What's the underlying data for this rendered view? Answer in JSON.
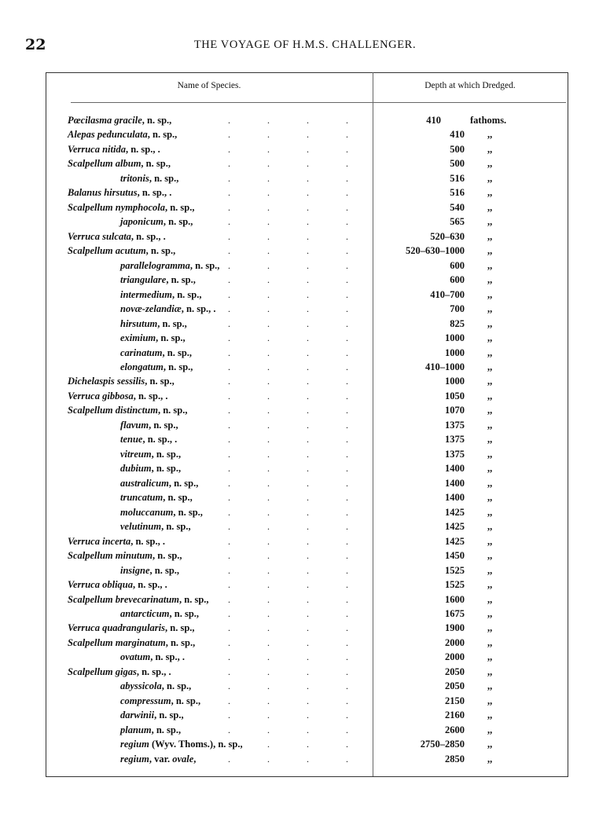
{
  "page_number": "22",
  "running_head": "THE VOYAGE OF H.M.S. CHALLENGER.",
  "table": {
    "headers": {
      "name": "Name of Species.",
      "depth": "Depth at which Dredged."
    },
    "rows": [
      {
        "name": "Pœcilasma gracile",
        "suffix": ", n. sp.,",
        "indent": false,
        "depth": "410",
        "unit": "fathoms."
      },
      {
        "name": "Alepas pedunculata",
        "suffix": ", n. sp.,",
        "indent": false,
        "depth": "410",
        "unit": ",,"
      },
      {
        "name": "Verruca nitida",
        "suffix": ", n. sp., .",
        "indent": false,
        "depth": "500",
        "unit": ",,"
      },
      {
        "name": "Scalpellum album",
        "suffix": ", n. sp.,",
        "indent": false,
        "depth": "500",
        "unit": ",,"
      },
      {
        "name": "tritonis",
        "suffix": ", n. sp.,",
        "indent": true,
        "depth": "516",
        "unit": ",,"
      },
      {
        "name": "Balanus hirsutus",
        "suffix": ", n. sp., .",
        "indent": false,
        "depth": "516",
        "unit": ",,"
      },
      {
        "name": "Scalpellum nymphocola",
        "suffix": ", n. sp.,",
        "indent": false,
        "depth": "540",
        "unit": ",,"
      },
      {
        "name": "japonicum",
        "suffix": ", n. sp.,",
        "indent": true,
        "depth": "565",
        "unit": ",,"
      },
      {
        "name": "Verruca sulcata",
        "suffix": ", n. sp., .",
        "indent": false,
        "depth": "520–630",
        "unit": ",,"
      },
      {
        "name": "Scalpellum acutum",
        "suffix": ", n. sp.,",
        "indent": false,
        "depth": "520–630–1000",
        "unit": ",,"
      },
      {
        "name": "parallelogramma",
        "suffix": ", n. sp.,",
        "indent": true,
        "depth": "600",
        "unit": ",,"
      },
      {
        "name": "triangulare",
        "suffix": ", n. sp.,",
        "indent": true,
        "depth": "600",
        "unit": ",,"
      },
      {
        "name": "intermedium",
        "suffix": ", n. sp.,",
        "indent": true,
        "depth": "410–700",
        "unit": ",,"
      },
      {
        "name": "novæ-zelandiæ",
        "suffix": ", n. sp., .",
        "indent": true,
        "depth": "700",
        "unit": ",,"
      },
      {
        "name": "hirsutum",
        "suffix": ", n. sp.,",
        "indent": true,
        "depth": "825",
        "unit": ",,"
      },
      {
        "name": "eximium",
        "suffix": ", n. sp.,",
        "indent": true,
        "depth": "1000",
        "unit": ",,"
      },
      {
        "name": "carinatum",
        "suffix": ", n. sp.,",
        "indent": true,
        "depth": "1000",
        "unit": ",,"
      },
      {
        "name": "elongatum",
        "suffix": ", n. sp.,",
        "indent": true,
        "depth": "410–1000",
        "unit": ",,"
      },
      {
        "name": "Dichelaspis sessilis",
        "suffix": ", n. sp.,",
        "indent": false,
        "depth": "1000",
        "unit": ",,"
      },
      {
        "name": "Verruca gibbosa",
        "suffix": ", n. sp., .",
        "indent": false,
        "depth": "1050",
        "unit": ",,"
      },
      {
        "name": "Scalpellum distinctum",
        "suffix": ", n. sp.,",
        "indent": false,
        "depth": "1070",
        "unit": ",,"
      },
      {
        "name": "flavum",
        "suffix": ", n. sp.,",
        "indent": true,
        "depth": "1375",
        "unit": ",,"
      },
      {
        "name": "tenue",
        "suffix": ", n. sp., .",
        "indent": true,
        "depth": "1375",
        "unit": ",,"
      },
      {
        "name": "vitreum",
        "suffix": ", n. sp.,",
        "indent": true,
        "depth": "1375",
        "unit": ",,"
      },
      {
        "name": "dubium",
        "suffix": ", n. sp.,",
        "indent": true,
        "depth": "1400",
        "unit": ",,"
      },
      {
        "name": "australicum",
        "suffix": ", n. sp.,",
        "indent": true,
        "depth": "1400",
        "unit": ",,"
      },
      {
        "name": "truncatum",
        "suffix": ", n. sp.,",
        "indent": true,
        "depth": "1400",
        "unit": ",,"
      },
      {
        "name": "moluccanum",
        "suffix": ", n. sp.,",
        "indent": true,
        "depth": "1425",
        "unit": ",,"
      },
      {
        "name": "velutinum",
        "suffix": ", n. sp.,",
        "indent": true,
        "depth": "1425",
        "unit": ",,"
      },
      {
        "name": "Verruca incerta",
        "suffix": ", n. sp., .",
        "indent": false,
        "depth": "1425",
        "unit": ",,"
      },
      {
        "name": "Scalpellum minutum",
        "suffix": ", n. sp.,",
        "indent": false,
        "depth": "1450",
        "unit": ",,"
      },
      {
        "name": "insigne",
        "suffix": ", n. sp.,",
        "indent": true,
        "depth": "1525",
        "unit": ",,"
      },
      {
        "name": "Verruca obliqua",
        "suffix": ", n. sp., .",
        "indent": false,
        "depth": "1525",
        "unit": ",,"
      },
      {
        "name": "Scalpellum brevecarinatum",
        "suffix": ", n. sp.,",
        "indent": false,
        "depth": "1600",
        "unit": ",,"
      },
      {
        "name": "antarcticum",
        "suffix": ", n. sp.,",
        "indent": true,
        "depth": "1675",
        "unit": ",,"
      },
      {
        "name": "Verruca quadrangularis",
        "suffix": ", n. sp.,",
        "indent": false,
        "depth": "1900",
        "unit": ",,"
      },
      {
        "name": "Scalpellum marginatum",
        "suffix": ", n. sp.,",
        "indent": false,
        "depth": "2000",
        "unit": ",,"
      },
      {
        "name": "ovatum",
        "suffix": ", n. sp., .",
        "indent": true,
        "depth": "2000",
        "unit": ",,"
      },
      {
        "name": "Scalpellum gigas",
        "suffix": ", n. sp., .",
        "indent": false,
        "depth": "2050",
        "unit": ",,"
      },
      {
        "name": "abyssicola",
        "suffix": ", n. sp.,",
        "indent": true,
        "depth": "2050",
        "unit": ",,"
      },
      {
        "name": "compressum",
        "suffix": ", n. sp.,",
        "indent": true,
        "depth": "2150",
        "unit": ",,"
      },
      {
        "name": "darwinii",
        "suffix": ", n. sp.,",
        "indent": true,
        "depth": "2160",
        "unit": ",,"
      },
      {
        "name": "planum",
        "suffix": ", n. sp.,",
        "indent": true,
        "depth": "2600",
        "unit": ",,"
      },
      {
        "name": "regium",
        "suffix": " (Wyv. Thoms.), n. sp.,",
        "indent": true,
        "depth": "2750–2850",
        "unit": ",,"
      },
      {
        "name": "regium",
        "suffix": ", var. ",
        "name2": "ovale",
        "suffix2": ",",
        "indent": true,
        "depth": "2850",
        "unit": ",,"
      }
    ]
  }
}
